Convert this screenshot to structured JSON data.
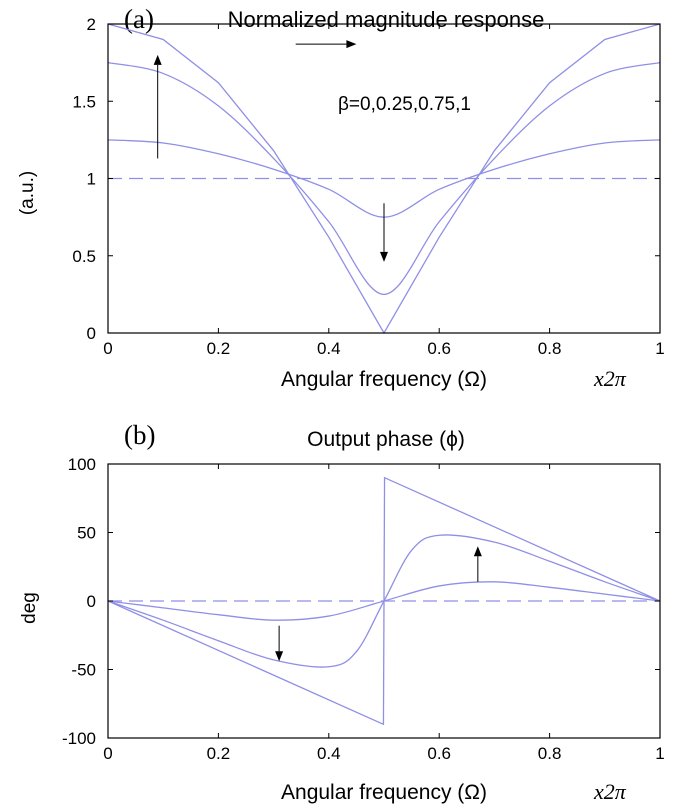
{
  "colors": {
    "curve": "#8f8fe6",
    "axis": "#000000",
    "arrow": "#000000"
  },
  "chart_data": [
    {
      "type": "line",
      "panel_label": "(a)",
      "title": "Normalized magnitude response",
      "xlabel": "Angular frequency (Ω)",
      "xunit": "x2π",
      "ylabel": "(a.u.)",
      "xlim": [
        0,
        1
      ],
      "ylim": [
        0,
        2
      ],
      "xticks": [
        0,
        0.2,
        0.4,
        0.6,
        0.8,
        1
      ],
      "yticks": [
        0,
        0.5,
        1,
        1.5,
        2
      ],
      "xtick_labels": [
        "0",
        "0.2",
        "0.4",
        "0.6",
        "0.8",
        "1"
      ],
      "ytick_labels": [
        "0",
        "0.5",
        "1",
        "1.5",
        "2"
      ],
      "annotation": "β=0,0.25,0.75,1",
      "grid": false,
      "series": [
        {
          "beta": 0,
          "style": "dashed",
          "x": [
            0,
            0.5,
            1
          ],
          "y": [
            1,
            1,
            1
          ]
        },
        {
          "beta": 0.25,
          "style": "solid",
          "x": [
            0,
            0.1,
            0.2,
            0.3,
            0.4,
            0.5,
            0.6,
            0.7,
            0.8,
            0.9,
            1
          ],
          "y": [
            1.25,
            1.23,
            1.16,
            1.06,
            0.93,
            0.75,
            0.93,
            1.06,
            1.16,
            1.23,
            1.25
          ]
        },
        {
          "beta": 0.75,
          "style": "solid",
          "x": [
            0,
            0.1,
            0.2,
            0.3,
            0.4,
            0.5,
            0.6,
            0.7,
            0.8,
            0.9,
            1
          ],
          "y": [
            1.75,
            1.68,
            1.47,
            1.13,
            0.72,
            0.25,
            0.72,
            1.13,
            1.47,
            1.68,
            1.75
          ]
        },
        {
          "beta": 1,
          "style": "solid",
          "x": [
            0,
            0.1,
            0.2,
            0.3,
            0.4,
            0.5,
            0.6,
            0.7,
            0.8,
            0.9,
            1
          ],
          "y": [
            2,
            1.9,
            1.62,
            1.18,
            0.62,
            0,
            0.62,
            1.18,
            1.62,
            1.9,
            2
          ]
        }
      ],
      "arrows": [
        {
          "from": [
            0.09,
            1.13
          ],
          "to": [
            0.09,
            1.8
          ]
        },
        {
          "from": [
            0.5,
            0.84
          ],
          "to": [
            0.5,
            0.46
          ]
        },
        {
          "from": [
            0.34,
            1.87
          ],
          "to": [
            0.45,
            1.87
          ]
        }
      ]
    },
    {
      "type": "line",
      "panel_label": "(b)",
      "title": "Output phase (ϕ)",
      "xlabel": "Angular frequency (Ω)",
      "xunit": "x2π",
      "ylabel": "deg",
      "xlim": [
        0,
        1
      ],
      "ylim": [
        -100,
        100
      ],
      "xticks": [
        0,
        0.2,
        0.4,
        0.6,
        0.8,
        1
      ],
      "yticks": [
        -100,
        -50,
        0,
        50,
        100
      ],
      "xtick_labels": [
        "0",
        "0.2",
        "0.4",
        "0.6",
        "0.8",
        "1"
      ],
      "ytick_labels": [
        "-100",
        "-50",
        "0",
        "50",
        "100"
      ],
      "grid": false,
      "series": [
        {
          "beta": 0,
          "style": "dashed",
          "x": [
            0,
            0.5,
            1
          ],
          "y": [
            0,
            0,
            0
          ]
        },
        {
          "beta": 0.25,
          "style": "solid",
          "x": [
            0,
            0.1,
            0.2,
            0.3,
            0.4,
            0.5,
            0.6,
            0.7,
            0.8,
            0.9,
            1
          ],
          "y": [
            0,
            -5,
            -10,
            -14,
            -11,
            0,
            11,
            14,
            10,
            5,
            0
          ]
        },
        {
          "beta": 0.75,
          "style": "solid",
          "x": [
            0,
            0.1,
            0.2,
            0.3,
            0.4,
            0.45,
            0.5,
            0.55,
            0.6,
            0.7,
            0.8,
            0.9,
            1
          ],
          "y": [
            0,
            -14,
            -29,
            -43,
            -48,
            -37,
            0,
            37,
            48,
            43,
            29,
            14,
            0
          ]
        },
        {
          "beta": 1,
          "style": "solid",
          "x": [
            0,
            0.499,
            0.5,
            0.501,
            1
          ],
          "y": [
            0,
            -90,
            0,
            90,
            0
          ]
        }
      ],
      "arrows": [
        {
          "from": [
            0.31,
            -18
          ],
          "to": [
            0.31,
            -44
          ]
        },
        {
          "from": [
            0.67,
            14
          ],
          "to": [
            0.67,
            40
          ]
        }
      ]
    }
  ]
}
